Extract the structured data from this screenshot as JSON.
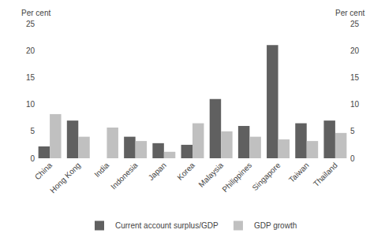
{
  "chart_data": {
    "type": "bar",
    "categories": [
      "China",
      "Hong Kong",
      "India",
      "Indonesia",
      "Japan",
      "Korea",
      "Malaysia",
      "Philippines",
      "Singapore",
      "Taiwan",
      "Thailand"
    ],
    "series": [
      {
        "name": "Current account surplus/GDP",
        "color": "#606060",
        "values": [
          2.2,
          7.0,
          0.0,
          4.0,
          2.8,
          2.5,
          11.0,
          6.0,
          21.0,
          6.5,
          7.0
        ]
      },
      {
        "name": "GDP growth",
        "color": "#c0c0c0",
        "values": [
          8.2,
          4.0,
          5.7,
          3.2,
          1.2,
          6.5,
          5.0,
          4.0,
          3.5,
          3.2,
          4.7
        ]
      }
    ],
    "ylabel": "Per cent",
    "y2label": "Per cent",
    "ylim": [
      0,
      25
    ],
    "yticks": [
      0,
      5,
      10,
      15,
      20,
      25
    ],
    "y2lim": [
      0,
      25
    ],
    "y2ticks": [
      0,
      5,
      10,
      15,
      20,
      25
    ],
    "grid": false,
    "legend": "bottom"
  }
}
